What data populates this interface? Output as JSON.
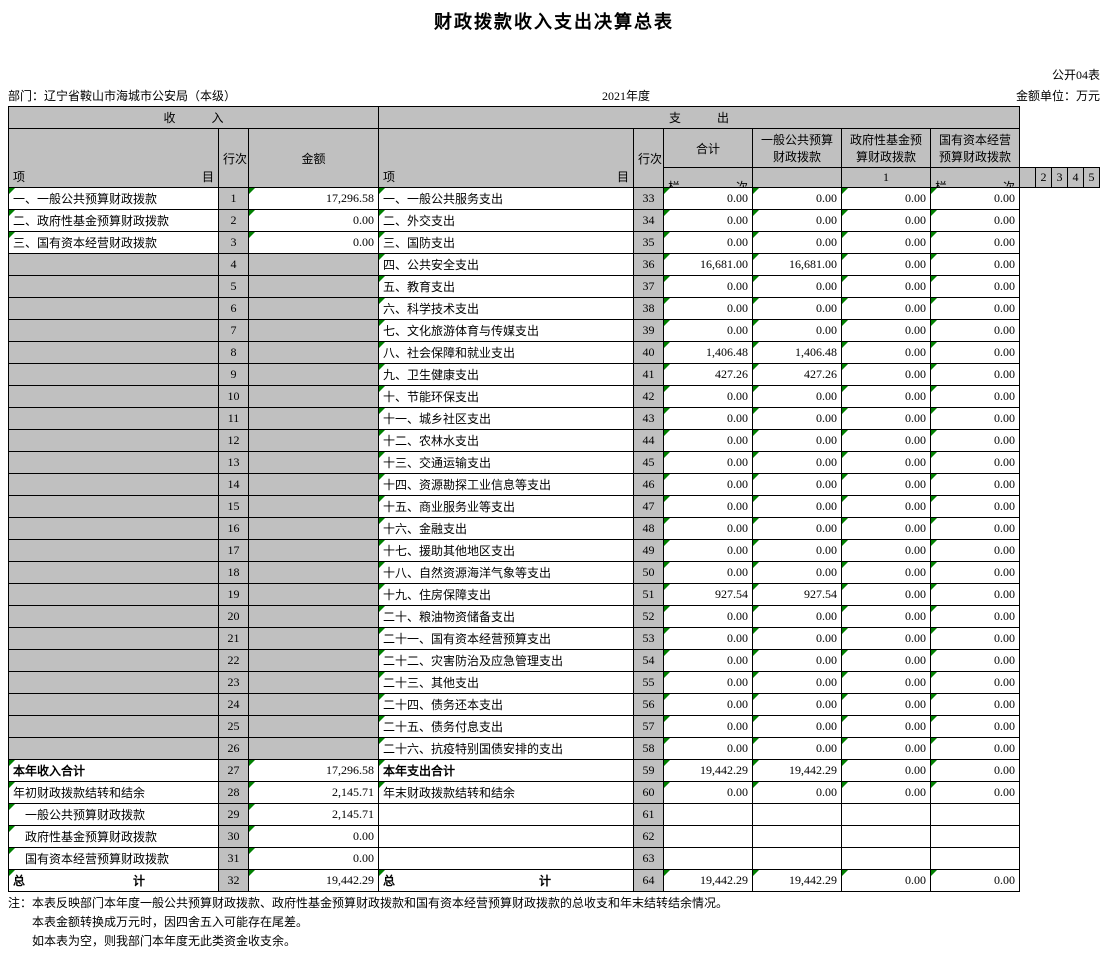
{
  "title": "财政拨款收入支出决算总表",
  "table_code": "公开04表",
  "dept_label": "部门：",
  "dept_name": "辽宁省鞍山市海城市公安局（本级）",
  "year": "2021年度",
  "unit": "金额单位：万元",
  "headers": {
    "income": "收　　　入",
    "expense": "支　　　出",
    "item": "项",
    "mu": "目",
    "rownum": "行次",
    "amount": "金额",
    "total": "合计",
    "col3": "一般公共预算财政拨款",
    "col4": "政府性基金预算财政拨款",
    "col5": "国有资本经营预算财政拨款",
    "lan": "栏",
    "ci": "次"
  },
  "col_nums": [
    "1",
    "2",
    "3",
    "4",
    "5"
  ],
  "rows": [
    {
      "in_item": "一、一般公共预算财政拨款",
      "in_row": "1",
      "in_amt": "17,296.58",
      "ex_item": "一、一般公共服务支出",
      "ex_row": "33",
      "v": [
        "0.00",
        "0.00",
        "0.00",
        "0.00"
      ],
      "gray": false,
      "tri_in": true
    },
    {
      "in_item": "二、政府性基金预算财政拨款",
      "in_row": "2",
      "in_amt": "0.00",
      "ex_item": "二、外交支出",
      "ex_row": "34",
      "v": [
        "0.00",
        "0.00",
        "0.00",
        "0.00"
      ],
      "gray": false,
      "tri_in": true
    },
    {
      "in_item": "三、国有资本经营财政拨款",
      "in_row": "3",
      "in_amt": "0.00",
      "ex_item": "三、国防支出",
      "ex_row": "35",
      "v": [
        "0.00",
        "0.00",
        "0.00",
        "0.00"
      ],
      "gray": false,
      "tri_in": true
    },
    {
      "in_item": "",
      "in_row": "4",
      "in_amt": "",
      "ex_item": "四、公共安全支出",
      "ex_row": "36",
      "v": [
        "16,681.00",
        "16,681.00",
        "0.00",
        "0.00"
      ],
      "gray": true
    },
    {
      "in_item": "",
      "in_row": "5",
      "in_amt": "",
      "ex_item": "五、教育支出",
      "ex_row": "37",
      "v": [
        "0.00",
        "0.00",
        "0.00",
        "0.00"
      ],
      "gray": true
    },
    {
      "in_item": "",
      "in_row": "6",
      "in_amt": "",
      "ex_item": "六、科学技术支出",
      "ex_row": "38",
      "v": [
        "0.00",
        "0.00",
        "0.00",
        "0.00"
      ],
      "gray": true
    },
    {
      "in_item": "",
      "in_row": "7",
      "in_amt": "",
      "ex_item": "七、文化旅游体育与传媒支出",
      "ex_row": "39",
      "v": [
        "0.00",
        "0.00",
        "0.00",
        "0.00"
      ],
      "gray": true
    },
    {
      "in_item": "",
      "in_row": "8",
      "in_amt": "",
      "ex_item": "八、社会保障和就业支出",
      "ex_row": "40",
      "v": [
        "1,406.48",
        "1,406.48",
        "0.00",
        "0.00"
      ],
      "gray": true
    },
    {
      "in_item": "",
      "in_row": "9",
      "in_amt": "",
      "ex_item": "九、卫生健康支出",
      "ex_row": "41",
      "v": [
        "427.26",
        "427.26",
        "0.00",
        "0.00"
      ],
      "gray": true
    },
    {
      "in_item": "",
      "in_row": "10",
      "in_amt": "",
      "ex_item": "十、节能环保支出",
      "ex_row": "42",
      "v": [
        "0.00",
        "0.00",
        "0.00",
        "0.00"
      ],
      "gray": true
    },
    {
      "in_item": "",
      "in_row": "11",
      "in_amt": "",
      "ex_item": "十一、城乡社区支出",
      "ex_row": "43",
      "v": [
        "0.00",
        "0.00",
        "0.00",
        "0.00"
      ],
      "gray": true
    },
    {
      "in_item": "",
      "in_row": "12",
      "in_amt": "",
      "ex_item": "十二、农林水支出",
      "ex_row": "44",
      "v": [
        "0.00",
        "0.00",
        "0.00",
        "0.00"
      ],
      "gray": true
    },
    {
      "in_item": "",
      "in_row": "13",
      "in_amt": "",
      "ex_item": "十三、交通运输支出",
      "ex_row": "45",
      "v": [
        "0.00",
        "0.00",
        "0.00",
        "0.00"
      ],
      "gray": true
    },
    {
      "in_item": "",
      "in_row": "14",
      "in_amt": "",
      "ex_item": "十四、资源勘探工业信息等支出",
      "ex_row": "46",
      "v": [
        "0.00",
        "0.00",
        "0.00",
        "0.00"
      ],
      "gray": true
    },
    {
      "in_item": "",
      "in_row": "15",
      "in_amt": "",
      "ex_item": "十五、商业服务业等支出",
      "ex_row": "47",
      "v": [
        "0.00",
        "0.00",
        "0.00",
        "0.00"
      ],
      "gray": true
    },
    {
      "in_item": "",
      "in_row": "16",
      "in_amt": "",
      "ex_item": "十六、金融支出",
      "ex_row": "48",
      "v": [
        "0.00",
        "0.00",
        "0.00",
        "0.00"
      ],
      "gray": true
    },
    {
      "in_item": "",
      "in_row": "17",
      "in_amt": "",
      "ex_item": "十七、援助其他地区支出",
      "ex_row": "49",
      "v": [
        "0.00",
        "0.00",
        "0.00",
        "0.00"
      ],
      "gray": true
    },
    {
      "in_item": "",
      "in_row": "18",
      "in_amt": "",
      "ex_item": "十八、自然资源海洋气象等支出",
      "ex_row": "50",
      "v": [
        "0.00",
        "0.00",
        "0.00",
        "0.00"
      ],
      "gray": true
    },
    {
      "in_item": "",
      "in_row": "19",
      "in_amt": "",
      "ex_item": "十九、住房保障支出",
      "ex_row": "51",
      "v": [
        "927.54",
        "927.54",
        "0.00",
        "0.00"
      ],
      "gray": true
    },
    {
      "in_item": "",
      "in_row": "20",
      "in_amt": "",
      "ex_item": "二十、粮油物资储备支出",
      "ex_row": "52",
      "v": [
        "0.00",
        "0.00",
        "0.00",
        "0.00"
      ],
      "gray": true
    },
    {
      "in_item": "",
      "in_row": "21",
      "in_amt": "",
      "ex_item": "二十一、国有资本经营预算支出",
      "ex_row": "53",
      "v": [
        "0.00",
        "0.00",
        "0.00",
        "0.00"
      ],
      "gray": true
    },
    {
      "in_item": "",
      "in_row": "22",
      "in_amt": "",
      "ex_item": "二十二、灾害防治及应急管理支出",
      "ex_row": "54",
      "v": [
        "0.00",
        "0.00",
        "0.00",
        "0.00"
      ],
      "gray": true
    },
    {
      "in_item": "",
      "in_row": "23",
      "in_amt": "",
      "ex_item": "二十三、其他支出",
      "ex_row": "55",
      "v": [
        "0.00",
        "0.00",
        "0.00",
        "0.00"
      ],
      "gray": true
    },
    {
      "in_item": "",
      "in_row": "24",
      "in_amt": "",
      "ex_item": "二十四、债务还本支出",
      "ex_row": "56",
      "v": [
        "0.00",
        "0.00",
        "0.00",
        "0.00"
      ],
      "gray": true
    },
    {
      "in_item": "",
      "in_row": "25",
      "in_amt": "",
      "ex_item": "二十五、债务付息支出",
      "ex_row": "57",
      "v": [
        "0.00",
        "0.00",
        "0.00",
        "0.00"
      ],
      "gray": true
    },
    {
      "in_item": "",
      "in_row": "26",
      "in_amt": "",
      "ex_item": "二十六、抗疫特别国债安排的支出",
      "ex_row": "58",
      "v": [
        "0.00",
        "0.00",
        "0.00",
        "0.00"
      ],
      "gray": true
    }
  ],
  "footer": [
    {
      "in_item": "本年收入合计",
      "in_row": "27",
      "in_amt": "17,296.58",
      "ex_item": "本年支出合计",
      "ex_row": "59",
      "v": [
        "19,442.29",
        "19,442.29",
        "0.00",
        "0.00"
      ],
      "bold": true,
      "center": true,
      "tri_in": true
    },
    {
      "in_item": "年初财政拨款结转和结余",
      "in_row": "28",
      "in_amt": "2,145.71",
      "ex_item": "年末财政拨款结转和结余",
      "ex_row": "60",
      "v": [
        "0.00",
        "0.00",
        "0.00",
        "0.00"
      ],
      "tri_in": true
    },
    {
      "in_item": "一般公共预算财政拨款",
      "in_row": "29",
      "in_amt": "2,145.71",
      "ex_item": "",
      "ex_row": "61",
      "v": [
        "",
        "",
        "",
        ""
      ],
      "tri_in": true,
      "indent": "indent"
    },
    {
      "in_item": "政府性基金预算财政拨款",
      "in_row": "30",
      "in_amt": "0.00",
      "ex_item": "",
      "ex_row": "62",
      "v": [
        "",
        "",
        "",
        ""
      ],
      "tri_in": true,
      "indent": "indent"
    },
    {
      "in_item": "国有资本经营预算财政拨款",
      "in_row": "31",
      "in_amt": "0.00",
      "ex_item": "",
      "ex_row": "63",
      "v": [
        "",
        "",
        "",
        ""
      ],
      "tri_in": true,
      "indent": "indent"
    }
  ],
  "grand": {
    "in_item": "总　　　　　　　　　计",
    "in_row": "32",
    "in_amt": "19,442.29",
    "ex_item": "总　　　　　　　　　　　　计",
    "ex_row": "64",
    "v": [
      "19,442.29",
      "19,442.29",
      "0.00",
      "0.00"
    ]
  },
  "notes": [
    "注：本表反映部门本年度一般公共预算财政拨款、政府性基金预算财政拨款和国有资本经营预算财政拨款的总收支和年末结转结余情况。",
    "本表金额转换成万元时，因四舍五入可能存在尾差。",
    "如本表为空，则我部门本年度无此类资金收支余。"
  ]
}
